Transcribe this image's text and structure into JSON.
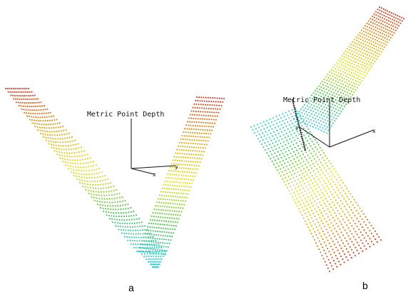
{
  "panels": [
    {
      "id": "a",
      "caption": "a",
      "axis_title": "Metric Point Depth",
      "axis_x_letter": "x",
      "axis_y_letter": "y"
    },
    {
      "id": "b",
      "caption": "b",
      "axis_title": "Metric Point Depth",
      "axis_x_letter": "x",
      "axis_y_letter": "y"
    }
  ],
  "colors": {
    "depth_far": "#e0301a",
    "depth_mid_far": "#f0a000",
    "depth_mid": "#e6e600",
    "depth_mid_near": "#40c840",
    "depth_near": "#30d0e0",
    "axes": "#111111",
    "scan_line": "#111111"
  }
}
